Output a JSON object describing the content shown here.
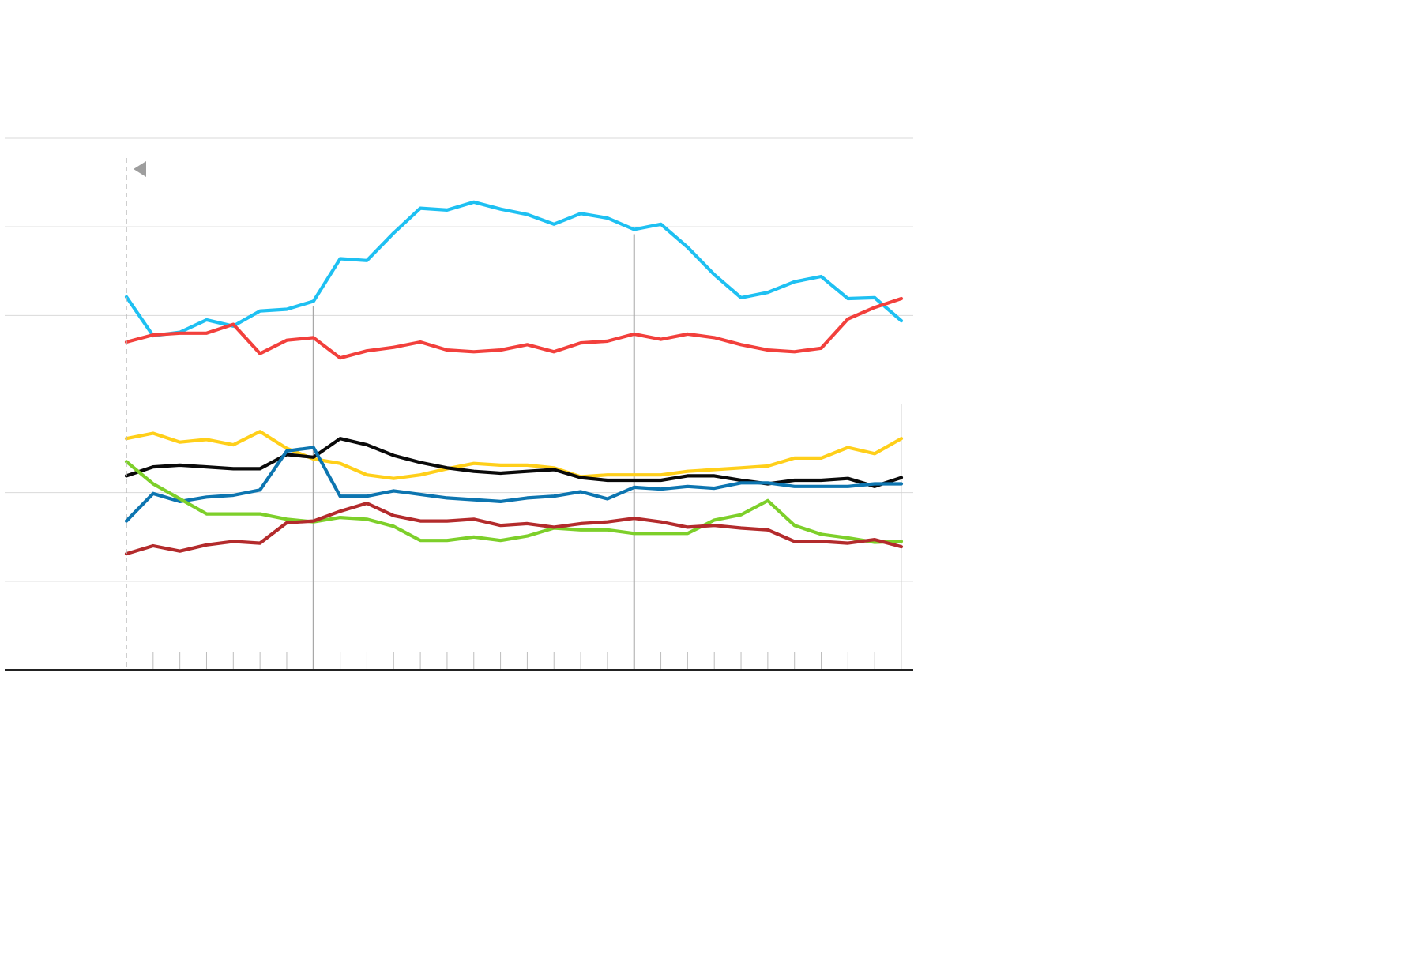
{
  "chart_data": {
    "type": "line",
    "title": "",
    "xlabel": "",
    "ylabel": "",
    "grid": true,
    "legend": "none",
    "x_count": 30,
    "ylim": [
      0,
      6
    ],
    "gridlines": [
      0,
      1,
      2,
      3,
      4,
      5,
      6
    ],
    "tick_labels": [],
    "vertical_markers": [
      7,
      19
    ],
    "series": [
      {
        "color": "#1ec0f2",
        "values": [
          4.21,
          3.77,
          3.81,
          3.95,
          3.88,
          4.05,
          4.07,
          4.16,
          4.64,
          4.62,
          4.93,
          5.21,
          5.19,
          5.28,
          5.2,
          5.14,
          5.03,
          5.15,
          5.1,
          4.97,
          5.03,
          4.77,
          4.46,
          4.2,
          4.26,
          4.38,
          4.44,
          4.19,
          4.2,
          3.94
        ]
      },
      {
        "color": "#f2403c",
        "values": [
          3.7,
          3.78,
          3.8,
          3.8,
          3.9,
          3.57,
          3.72,
          3.75,
          3.52,
          3.6,
          3.64,
          3.7,
          3.61,
          3.59,
          3.61,
          3.67,
          3.59,
          3.69,
          3.71,
          3.79,
          3.73,
          3.79,
          3.75,
          3.67,
          3.61,
          3.59,
          3.63,
          3.96,
          4.09,
          4.19
        ]
      },
      {
        "color": "#ffcf1a",
        "values": [
          2.61,
          2.67,
          2.57,
          2.6,
          2.54,
          2.69,
          2.5,
          2.38,
          2.33,
          2.2,
          2.16,
          2.2,
          2.27,
          2.33,
          2.31,
          2.31,
          2.28,
          2.18,
          2.2,
          2.2,
          2.2,
          2.24,
          2.26,
          2.28,
          2.3,
          2.39,
          2.39,
          2.51,
          2.44,
          2.61
        ]
      },
      {
        "color": "#0a0a0a",
        "values": [
          2.19,
          2.29,
          2.31,
          2.29,
          2.27,
          2.27,
          2.43,
          2.4,
          2.61,
          2.54,
          2.42,
          2.34,
          2.28,
          2.24,
          2.22,
          2.24,
          2.26,
          2.17,
          2.14,
          2.14,
          2.14,
          2.19,
          2.19,
          2.14,
          2.1,
          2.14,
          2.14,
          2.16,
          2.07,
          2.17
        ]
      },
      {
        "color": "#0d75b0",
        "values": [
          1.68,
          1.99,
          1.9,
          1.95,
          1.97,
          2.03,
          2.47,
          2.51,
          1.96,
          1.96,
          2.02,
          1.98,
          1.94,
          1.92,
          1.9,
          1.94,
          1.96,
          2.01,
          1.93,
          2.06,
          2.04,
          2.07,
          2.05,
          2.11,
          2.11,
          2.07,
          2.07,
          2.07,
          2.1,
          2.1
        ]
      },
      {
        "color": "#7dcf2a",
        "values": [
          2.35,
          2.1,
          1.93,
          1.76,
          1.76,
          1.76,
          1.7,
          1.67,
          1.72,
          1.7,
          1.62,
          1.46,
          1.46,
          1.5,
          1.46,
          1.51,
          1.6,
          1.58,
          1.58,
          1.54,
          1.54,
          1.54,
          1.69,
          1.75,
          1.91,
          1.63,
          1.53,
          1.49,
          1.44,
          1.45
        ]
      },
      {
        "color": "#b32b2c",
        "values": [
          1.31,
          1.4,
          1.34,
          1.41,
          1.45,
          1.43,
          1.66,
          1.68,
          1.79,
          1.88,
          1.74,
          1.68,
          1.68,
          1.7,
          1.63,
          1.65,
          1.61,
          1.65,
          1.67,
          1.71,
          1.67,
          1.61,
          1.63,
          1.6,
          1.58,
          1.45,
          1.45,
          1.43,
          1.47,
          1.39
        ]
      }
    ]
  }
}
